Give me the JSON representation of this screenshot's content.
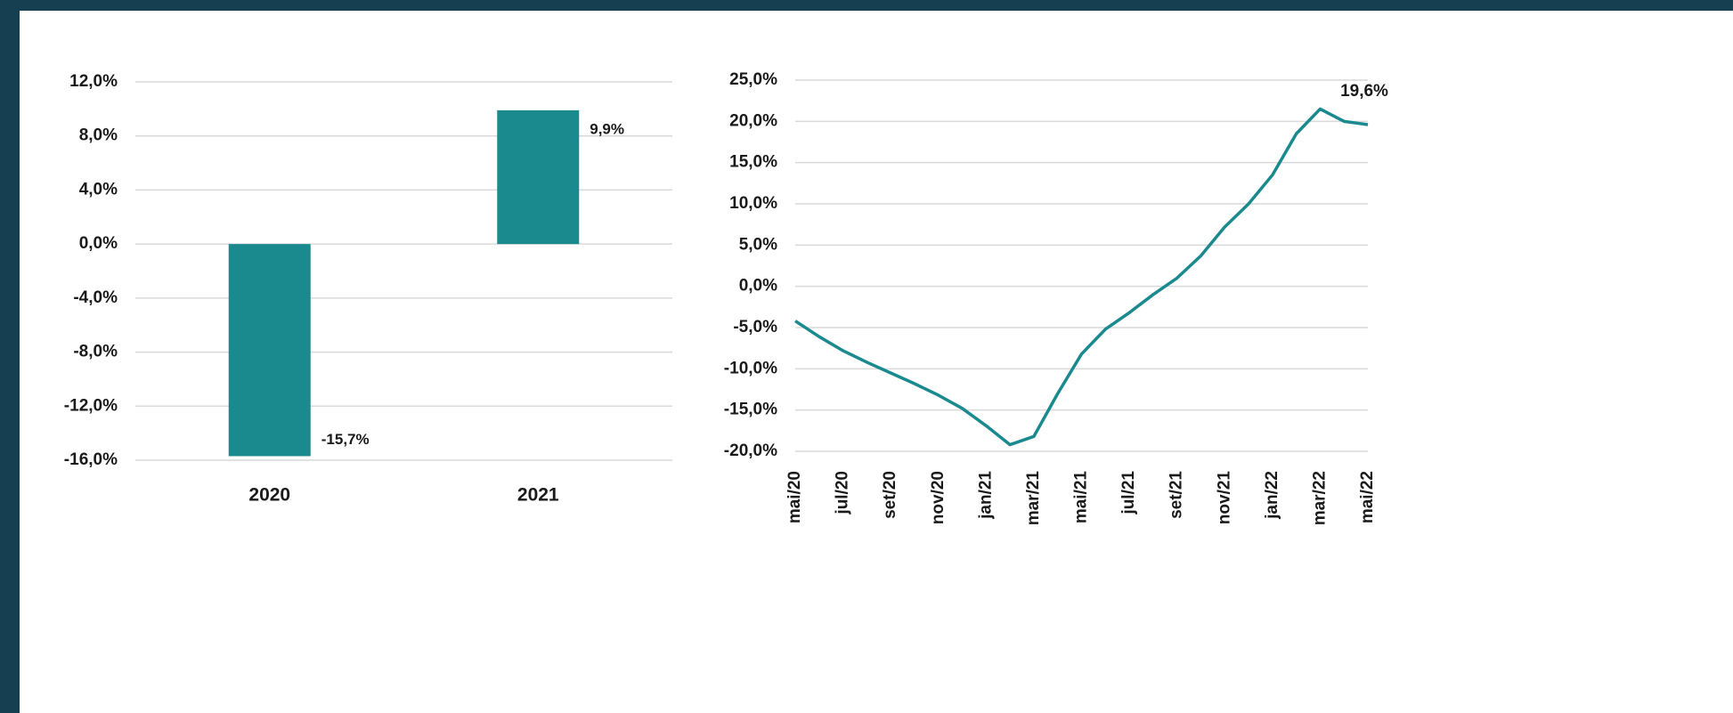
{
  "chart_data": [
    {
      "type": "bar",
      "categories": [
        "2020",
        "2021"
      ],
      "values": [
        -15.7,
        9.9
      ],
      "value_labels": [
        "-15,7%",
        "9,9%"
      ],
      "color": "#1a8a8f",
      "ylim": [
        -16,
        12
      ],
      "yticks": [
        {
          "value": -16,
          "label": "-16,0%"
        },
        {
          "value": -12,
          "label": "-12,0%"
        },
        {
          "value": -8,
          "label": "-8,0%"
        },
        {
          "value": -4,
          "label": "-4,0%"
        },
        {
          "value": 0,
          "label": "0,0%"
        },
        {
          "value": 4,
          "label": "4,0%"
        },
        {
          "value": 8,
          "label": "8,0%"
        },
        {
          "value": 12,
          "label": "12,0%"
        }
      ],
      "grid": true
    },
    {
      "type": "line",
      "categories": [
        "mai/20",
        null,
        "jul/20",
        null,
        "set/20",
        null,
        "nov/20",
        null,
        "jan/21",
        null,
        "mar/21",
        null,
        "mai/21",
        null,
        "jul/21",
        null,
        "set/21",
        null,
        "nov/21",
        null,
        "jan/22",
        null,
        "mar/22",
        null,
        "mai/22"
      ],
      "series": [
        {
          "color": "#1a8a8f",
          "values": [
            -4.2,
            -6.1,
            -7.8,
            -9.2,
            -10.5,
            -11.8,
            -13.2,
            -14.8,
            -16.9,
            -19.2,
            -18.2,
            -13.0,
            -8.2,
            -5.2,
            -3.2,
            -1.0,
            1.0,
            3.7,
            7.2,
            10.0,
            13.5,
            18.5,
            21.5,
            20.0,
            19.6
          ],
          "value_labels": [
            null,
            null,
            null,
            null,
            null,
            null,
            null,
            null,
            null,
            null,
            null,
            null,
            null,
            null,
            null,
            null,
            null,
            null,
            null,
            null,
            null,
            null,
            null,
            null,
            "19,6%"
          ]
        }
      ],
      "ylim": [
        -20,
        25
      ],
      "yticks": [
        {
          "value": -20,
          "label": "-20,0%"
        },
        {
          "value": -15,
          "label": "-15,0%"
        },
        {
          "value": -10,
          "label": "-10,0%"
        },
        {
          "value": -5,
          "label": "-5,0%"
        },
        {
          "value": 0,
          "label": "0,0%"
        },
        {
          "value": 5,
          "label": "5,0%"
        },
        {
          "value": 10,
          "label": "10,0%"
        },
        {
          "value": 15,
          "label": "15,0%"
        },
        {
          "value": 20,
          "label": "20,0%"
        },
        {
          "value": 25,
          "label": "25,0%"
        }
      ],
      "grid": true
    }
  ]
}
